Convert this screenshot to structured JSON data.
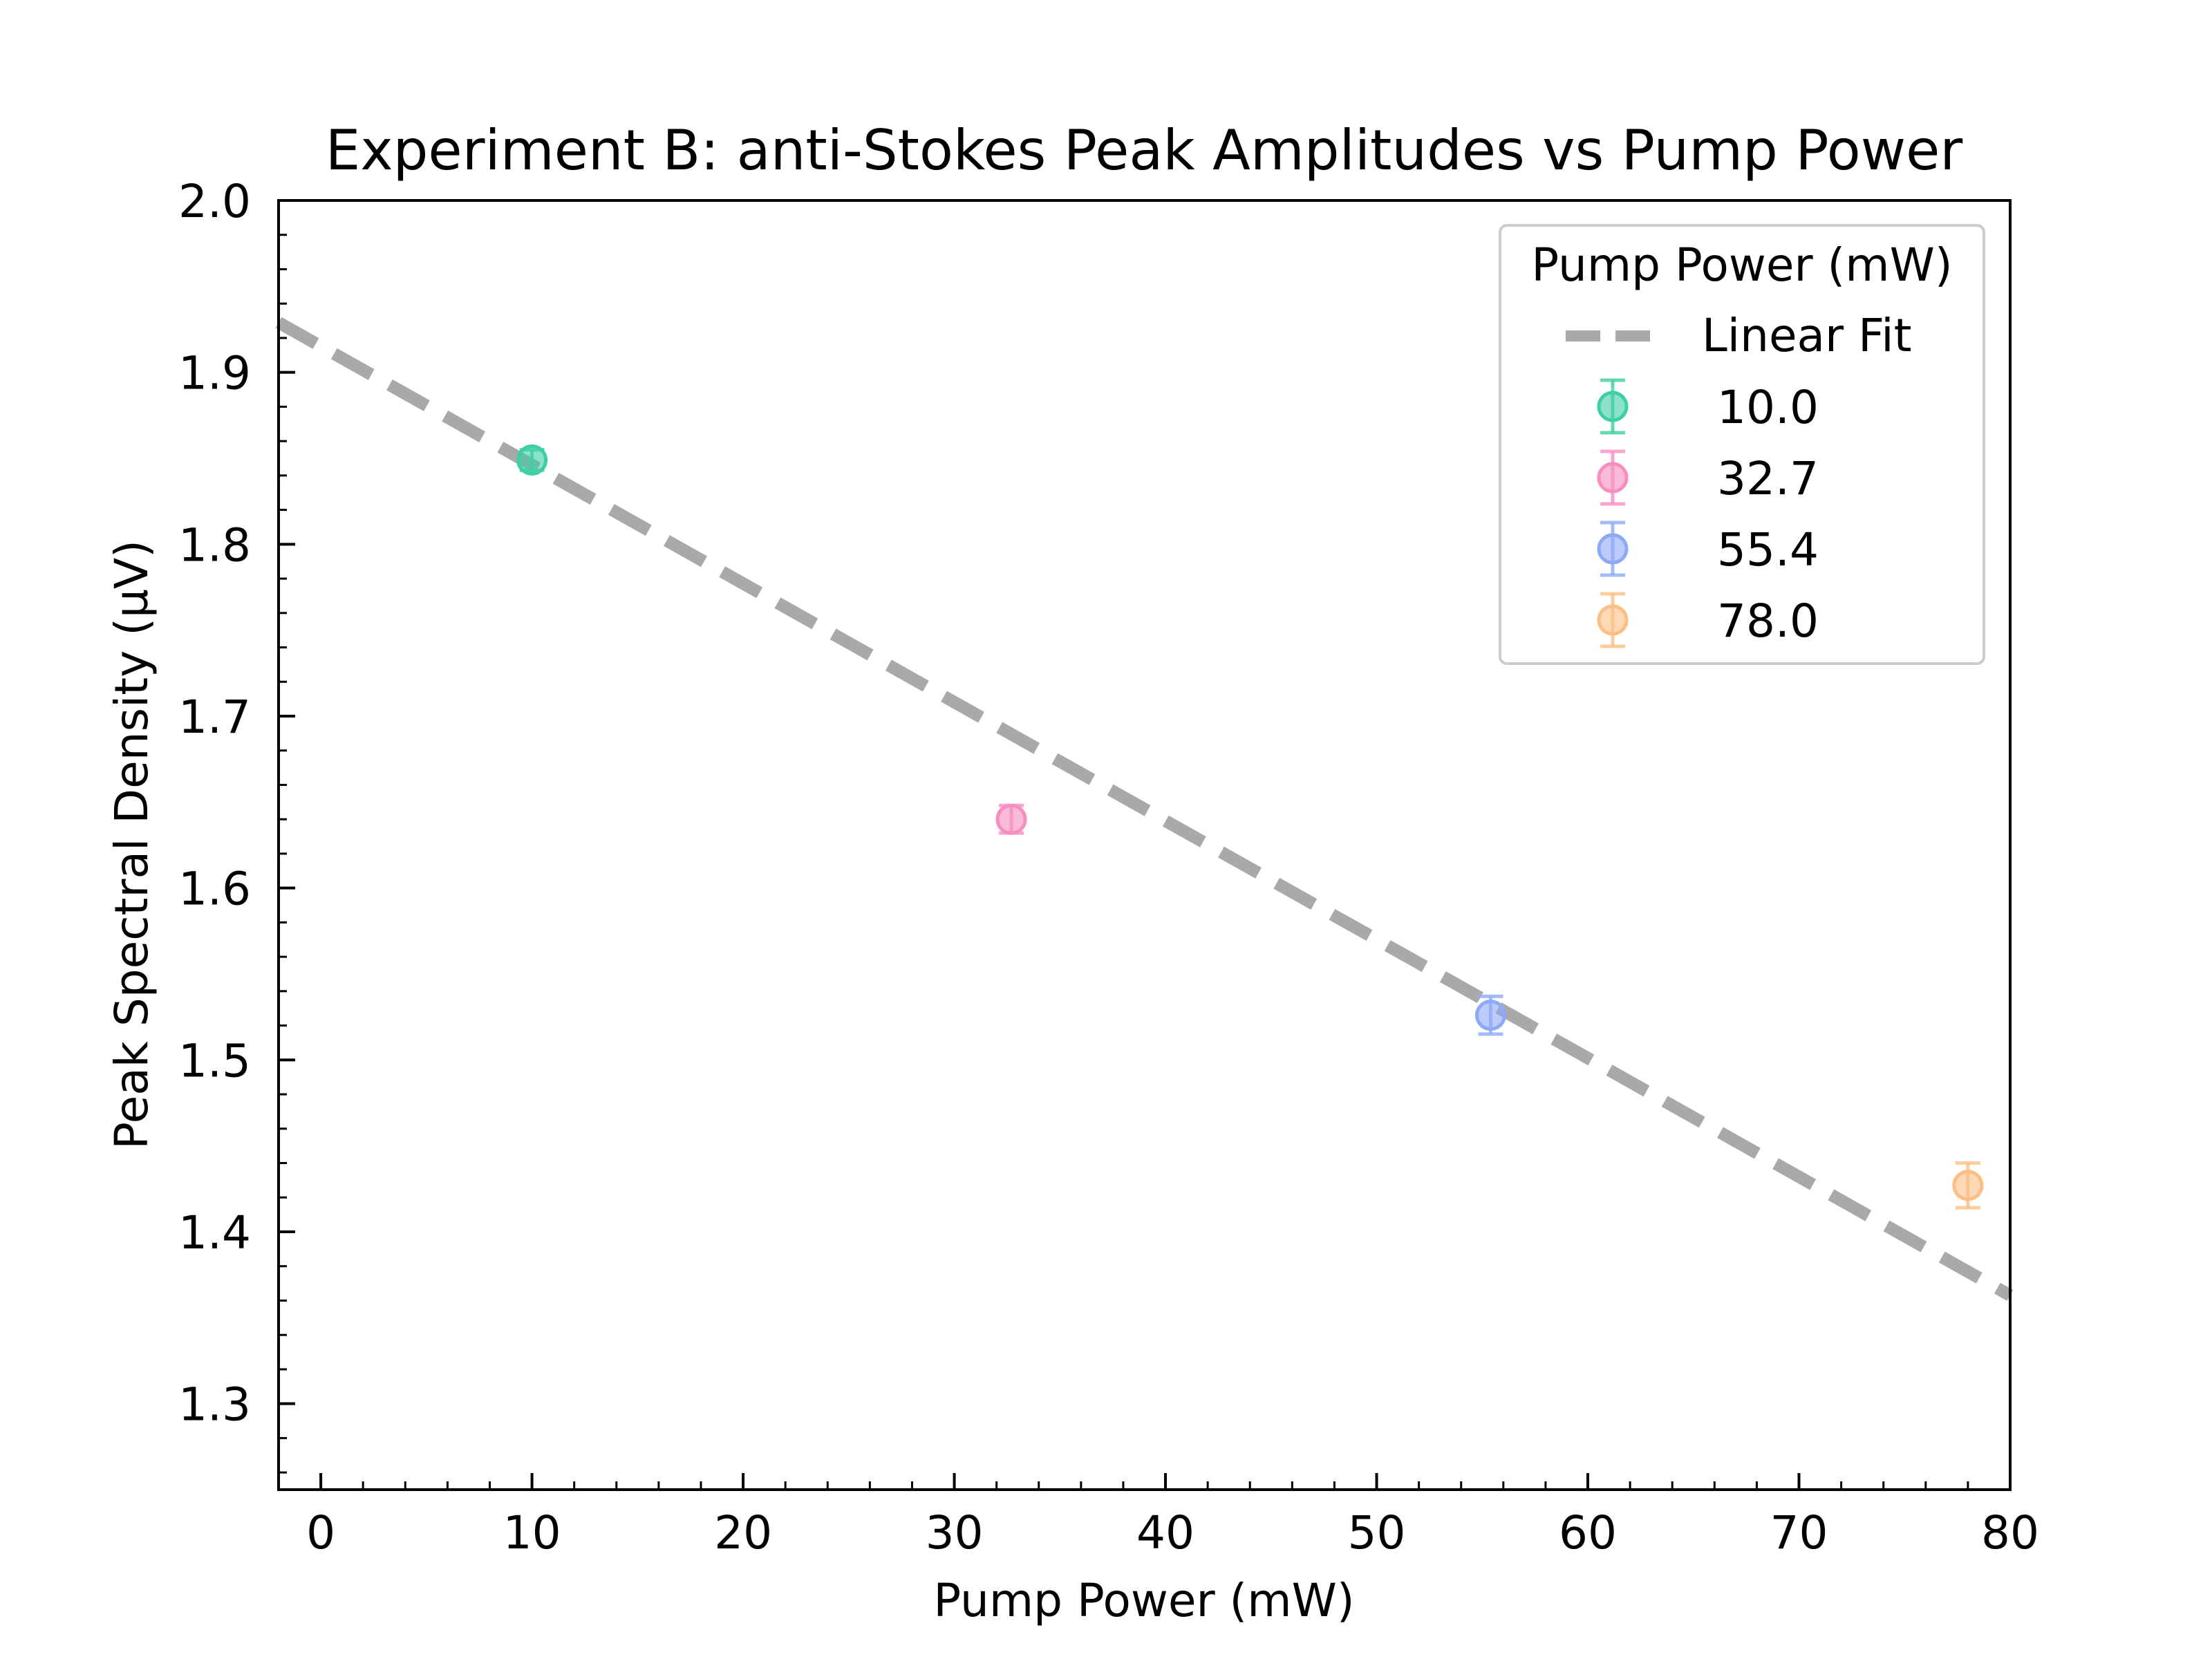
{
  "chart_data": {
    "type": "scatter",
    "title": "Experiment B: anti-Stokes Peak Amplitudes vs Pump Power",
    "xlabel": "Pump Power (mW)",
    "ylabel": "Peak Spectral Density (µV)",
    "xlim": [
      -2,
      80
    ],
    "ylim": [
      1.25,
      2.0
    ],
    "xticks": [
      0,
      10,
      20,
      30,
      40,
      50,
      60,
      70,
      80
    ],
    "yticks": [
      1.3,
      1.4,
      1.5,
      1.6,
      1.7,
      1.8,
      1.9,
      2.0
    ],
    "x_minor_step": 2,
    "y_minor_step": 0.02,
    "grid": false,
    "legend": {
      "title": "Pump Power (mW)",
      "placement": "top-right",
      "fit_label": "Linear Fit"
    },
    "fit": {
      "name": "Linear Fit",
      "x": [
        -2,
        80
      ],
      "y": [
        1.929,
        1.363
      ],
      "color": "#a9a9a9"
    },
    "points": [
      {
        "label": "10.0",
        "x": 10.0,
        "y": 1.849,
        "err": 0.006,
        "color": "#3ecfa4"
      },
      {
        "label": "32.7",
        "x": 32.7,
        "y": 1.64,
        "err": 0.008,
        "color": "#f68ec0"
      },
      {
        "label": "55.4",
        "x": 55.4,
        "y": 1.526,
        "err": 0.011,
        "color": "#8eaaf7"
      },
      {
        "label": "78.0",
        "x": 78.0,
        "y": 1.427,
        "err": 0.013,
        "color": "#fbbf86"
      }
    ]
  }
}
